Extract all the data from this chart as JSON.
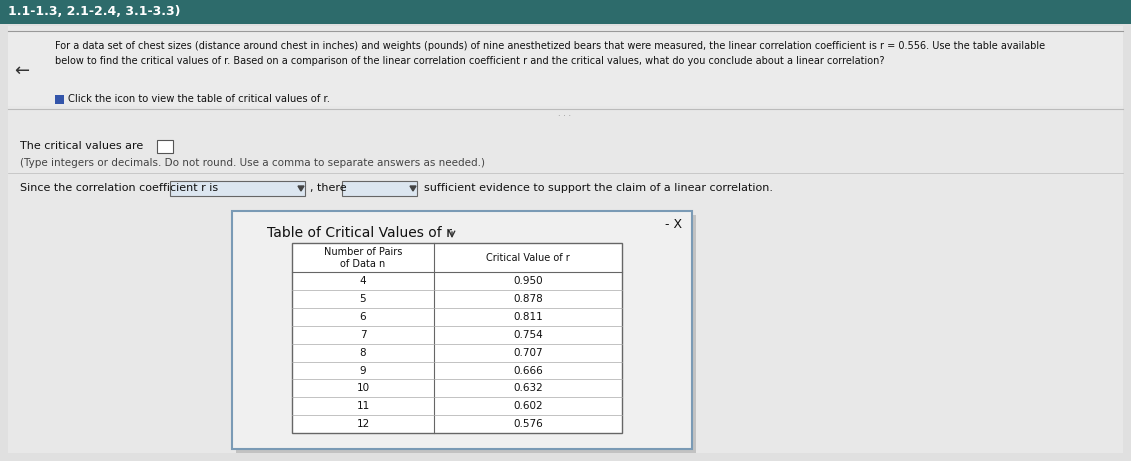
{
  "title_bar_text": "1.1-1.3, 2.1-2.4, 3.1-3.3)",
  "title_bar_color": "#2d6b6b",
  "title_bar_text_color": "#ffffff",
  "background_color": "#c8c8c8",
  "question_text_line1": "For a data set of chest sizes (distance around chest in inches) and weights (pounds) of nine anesthetized bears that were measured, the linear correlation coefficient is r = 0.556. Use the table available",
  "question_text_line2": "below to find the critical values of r. Based on a comparison of the linear correlation coefficient r and the critical values, what do you conclude about a linear correlation?",
  "click_text": "Click the icon to view the table of critical values of r.",
  "critical_values_label": "The critical values are",
  "type_hint": "(Type integers or decimals. Do not round. Use a comma to separate answers as needed.)",
  "since_text": "Since the correlation coefficient r is",
  "there_text": ", there",
  "sufficient_text": "sufficient evidence to support the claim of a linear correlation.",
  "table_title": "Table of Critical Values of r",
  "table_data": [
    [
      4,
      "0.950"
    ],
    [
      5,
      "0.878"
    ],
    [
      6,
      "0.811"
    ],
    [
      7,
      "0.754"
    ],
    [
      8,
      "0.707"
    ],
    [
      9,
      "0.666"
    ],
    [
      10,
      "0.632"
    ],
    [
      11,
      "0.602"
    ],
    [
      12,
      "0.576"
    ]
  ],
  "dialog_bg": "#f0f0f0",
  "dialog_border": "#7a9ab5",
  "minus_x_text": "- X",
  "input_box_color": "#dce6f0",
  "panel_bg": "#e0e0e0"
}
